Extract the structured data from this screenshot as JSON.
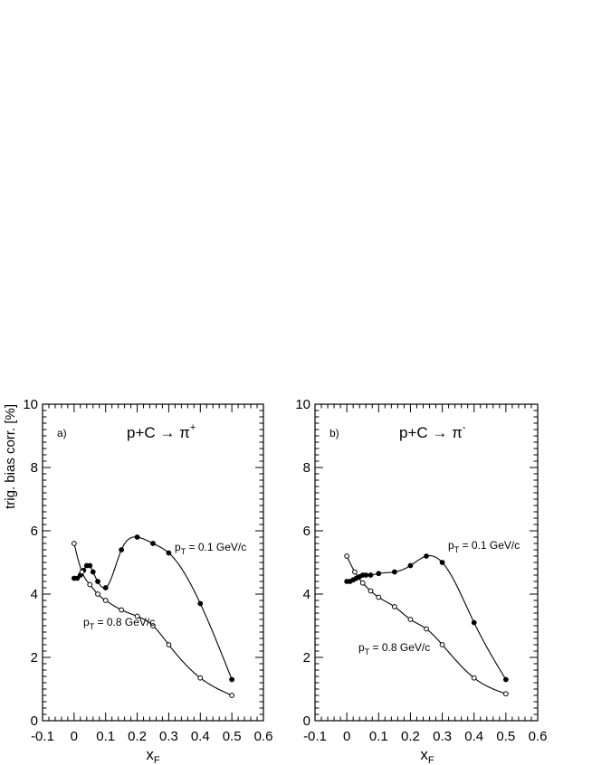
{
  "chart_data": [
    {
      "type": "line",
      "panel_label": "a)",
      "reaction": "p+C",
      "arrow": "→",
      "product": "π",
      "charge": "+",
      "xlabel_main": "x",
      "xlabel_sub": "F",
      "ylabel": "trig. bias corr. [%]",
      "xlim": [
        -0.1,
        0.6
      ],
      "ylim": [
        0,
        10
      ],
      "xticks": [
        "-0.1",
        "0",
        "0.1",
        "0.2",
        "0.3",
        "0.4",
        "0.5",
        "0.6"
      ],
      "yticks": [
        "0",
        "2",
        "4",
        "6",
        "8",
        "10"
      ],
      "grid": false,
      "series": [
        {
          "label_main": "p",
          "label_sub": "T",
          "label_value": " = 0.1 GeV/c",
          "marker": "filled",
          "x": [
            0.0,
            0.01,
            0.02,
            0.03,
            0.04,
            0.05,
            0.06,
            0.075,
            0.1,
            0.15,
            0.2,
            0.25,
            0.3,
            0.4,
            0.5
          ],
          "y": [
            4.5,
            4.5,
            4.6,
            4.75,
            4.9,
            4.9,
            4.7,
            4.4,
            4.2,
            5.4,
            5.8,
            5.6,
            5.3,
            3.7,
            1.3
          ]
        },
        {
          "label_main": "p",
          "label_sub": "T",
          "label_value": " = 0.8 GeV/c",
          "marker": "open",
          "x": [
            0.0,
            0.025,
            0.05,
            0.075,
            0.1,
            0.15,
            0.2,
            0.25,
            0.3,
            0.4,
            0.5
          ],
          "y": [
            5.6,
            4.7,
            4.3,
            4.0,
            3.8,
            3.5,
            3.3,
            3.0,
            2.4,
            1.35,
            0.8
          ]
        }
      ]
    },
    {
      "type": "line",
      "panel_label": "b)",
      "reaction": "p+C",
      "arrow": "→",
      "product": "π",
      "charge": "-",
      "xlabel_main": "x",
      "xlabel_sub": "F",
      "ylabel": "",
      "xlim": [
        -0.1,
        0.6
      ],
      "ylim": [
        0,
        10
      ],
      "xticks": [
        "-0.1",
        "0",
        "0.1",
        "0.2",
        "0.3",
        "0.4",
        "0.5",
        "0.6"
      ],
      "yticks": [
        "0",
        "2",
        "4",
        "6",
        "8",
        "10"
      ],
      "grid": false,
      "series": [
        {
          "label_main": "p",
          "label_sub": "T",
          "label_value": " = 0.1 GeV/c",
          "marker": "filled",
          "x": [
            0.0,
            0.01,
            0.02,
            0.03,
            0.04,
            0.05,
            0.06,
            0.075,
            0.1,
            0.15,
            0.2,
            0.25,
            0.3,
            0.4,
            0.5
          ],
          "y": [
            4.4,
            4.4,
            4.45,
            4.5,
            4.55,
            4.6,
            4.6,
            4.6,
            4.65,
            4.7,
            4.9,
            5.2,
            5.0,
            3.1,
            1.3
          ]
        },
        {
          "label_main": "p",
          "label_sub": "T",
          "label_value": " = 0.8 GeV/c",
          "marker": "open",
          "x": [
            0.0,
            0.025,
            0.05,
            0.075,
            0.1,
            0.15,
            0.2,
            0.25,
            0.3,
            0.4,
            0.5
          ],
          "y": [
            5.2,
            4.7,
            4.35,
            4.1,
            3.9,
            3.6,
            3.2,
            2.9,
            2.4,
            1.35,
            0.85
          ]
        }
      ]
    }
  ]
}
